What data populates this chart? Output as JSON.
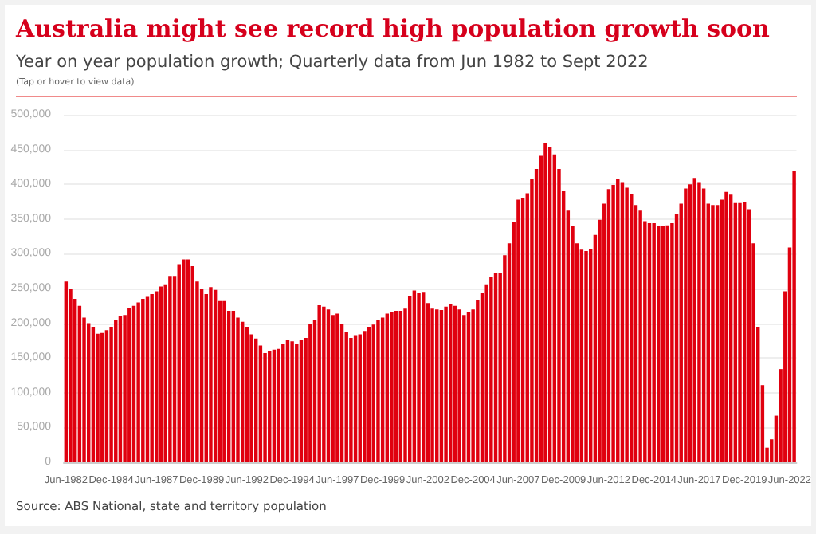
{
  "chart_data": {
    "type": "bar",
    "title": "Australia might see record high population growth soon",
    "subtitle": "Year on year population growth; Quarterly data from Jun 1982 to Sept 2022",
    "annotations": [
      "(Tap or hover to view data)",
      "Source: ABS National, state and territory population"
    ],
    "categories": [
      "Jun-1982",
      null,
      null,
      null,
      null,
      null,
      null,
      null,
      null,
      null,
      "Dec-1984",
      null,
      null,
      null,
      null,
      null,
      null,
      null,
      null,
      null,
      "Jun-1987",
      null,
      null,
      null,
      null,
      null,
      null,
      null,
      null,
      null,
      "Dec-1989",
      null,
      null,
      null,
      null,
      null,
      null,
      null,
      null,
      null,
      "Jun-1992",
      null,
      null,
      null,
      null,
      null,
      null,
      null,
      null,
      null,
      "Dec-1994",
      null,
      null,
      null,
      null,
      null,
      null,
      null,
      null,
      null,
      "Jun-1997",
      null,
      null,
      null,
      null,
      null,
      null,
      null,
      null,
      null,
      "Dec-1999",
      null,
      null,
      null,
      null,
      null,
      null,
      null,
      null,
      null,
      "Jun-2002",
      null,
      null,
      null,
      null,
      null,
      null,
      null,
      null,
      null,
      "Dec-2004",
      null,
      null,
      null,
      null,
      null,
      null,
      null,
      null,
      null,
      "Jun-2007",
      null,
      null,
      null,
      null,
      null,
      null,
      null,
      null,
      null,
      "Dec-2009",
      null,
      null,
      null,
      null,
      null,
      null,
      null,
      null,
      null,
      "Jun-2012",
      null,
      null,
      null,
      null,
      null,
      null,
      null,
      null,
      null,
      "Dec-2014",
      null,
      null,
      null,
      null,
      null,
      null,
      null,
      null,
      null,
      "Jun-2017",
      null,
      null,
      null,
      null,
      null,
      null,
      null,
      null,
      null,
      "Dec-2019",
      null,
      null,
      null,
      null,
      null,
      null,
      null,
      null,
      null,
      "Jun-2022",
      null
    ],
    "values": [
      260000,
      250000,
      235000,
      225000,
      208000,
      200000,
      195000,
      185000,
      186000,
      190000,
      195000,
      205000,
      210000,
      212000,
      222000,
      225000,
      230000,
      235000,
      238000,
      242000,
      246000,
      253000,
      256000,
      268000,
      268000,
      285000,
      292000,
      292000,
      282000,
      260000,
      250000,
      242000,
      252000,
      248000,
      232000,
      232000,
      218000,
      218000,
      208000,
      202000,
      195000,
      184000,
      178000,
      168000,
      157000,
      160000,
      162000,
      163000,
      170000,
      176000,
      174000,
      170000,
      176000,
      179000,
      199000,
      205000,
      226000,
      224000,
      220000,
      212000,
      214000,
      199000,
      187000,
      179000,
      183000,
      184000,
      189000,
      195000,
      198000,
      205000,
      208000,
      214000,
      216000,
      218000,
      218000,
      221000,
      239000,
      247000,
      243000,
      245000,
      229000,
      221000,
      220000,
      219000,
      224000,
      227000,
      225000,
      220000,
      212000,
      216000,
      220000,
      233000,
      244000,
      256000,
      266000,
      272000,
      273000,
      298000,
      315000,
      346000,
      378000,
      380000,
      387000,
      407000,
      422000,
      441000,
      460000,
      453000,
      443000,
      422000,
      390000,
      362000,
      340000,
      315000,
      306000,
      304000,
      307000,
      327000,
      349000,
      372000,
      393000,
      399000,
      407000,
      403000,
      395000,
      386000,
      370000,
      362000,
      347000,
      344000,
      344000,
      340000,
      340000,
      341000,
      344000,
      357000,
      372000,
      394000,
      400000,
      409000,
      403000,
      394000,
      372000,
      370000,
      370000,
      378000,
      389000,
      385000,
      373000,
      373000,
      375000,
      364000,
      315000,
      195000,
      111000,
      21000,
      33000,
      67000,
      134000,
      246000,
      309000,
      419000
    ],
    "color": "#e0000f",
    "ylim": [
      0,
      500000
    ],
    "yticks": [
      {
        "value": 0,
        "label": "0"
      },
      {
        "value": 50000,
        "label": "50,000"
      },
      {
        "value": 100000,
        "label": "100,000"
      },
      {
        "value": 150000,
        "label": "150,000"
      },
      {
        "value": 200000,
        "label": "200,000"
      },
      {
        "value": 250000,
        "label": "250,000"
      },
      {
        "value": 300000,
        "label": "300,000"
      },
      {
        "value": 350000,
        "label": "350,000"
      },
      {
        "value": 400000,
        "label": "400,000"
      },
      {
        "value": 450000,
        "label": "450,000"
      },
      {
        "value": 500000,
        "label": "500,000"
      }
    ],
    "grid": true
  }
}
